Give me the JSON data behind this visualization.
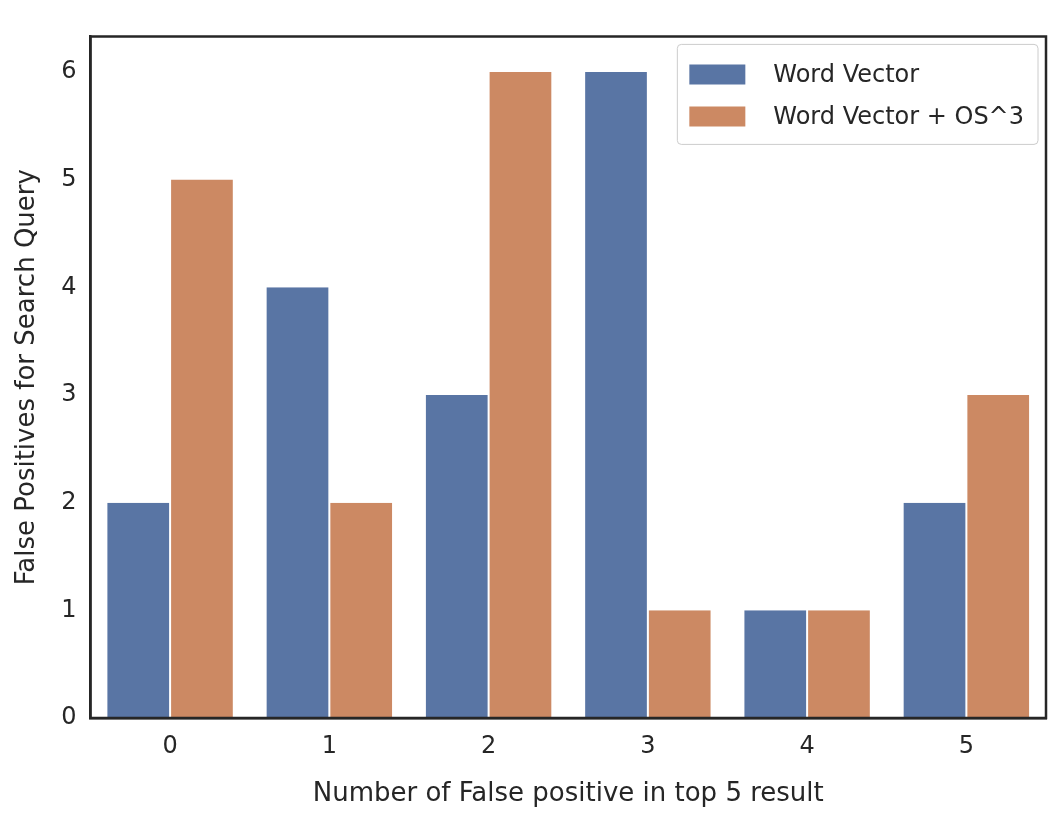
{
  "chart_data": {
    "type": "bar",
    "xlabel": "Number of False positive in top 5 result",
    "ylabel": "False Positives for Search Query",
    "categories": [
      "0",
      "1",
      "2",
      "3",
      "4",
      "5"
    ],
    "series": [
      {
        "name": "Word Vector",
        "color": "#5975a4",
        "values": [
          2,
          4,
          3,
          6,
          1,
          2
        ]
      },
      {
        "name": "Word Vector + OS^3",
        "color": "#cc8963",
        "values": [
          5,
          2,
          6,
          1,
          1,
          3
        ]
      }
    ],
    "ylim": [
      0,
      6.33
    ],
    "yticks": [
      0,
      1,
      2,
      3,
      4,
      5,
      6
    ],
    "grid": false,
    "legend": "top right"
  }
}
